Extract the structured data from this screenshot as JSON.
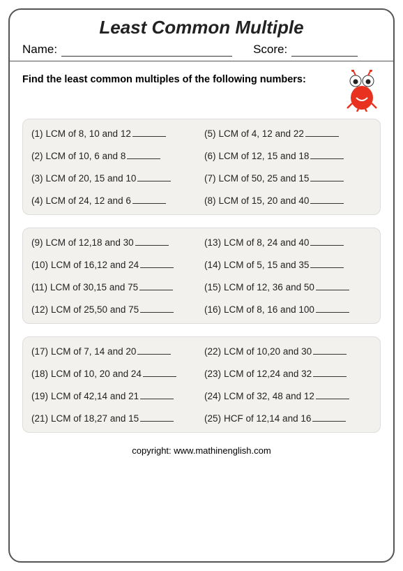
{
  "title": "Least Common Multiple",
  "name_label": "Name:",
  "score_label": "Score:",
  "instruction": "Find the least common multiples of the following numbers:",
  "copyright": "copyright:   www.mathinenglish.com",
  "colors": {
    "border": "#555555",
    "text": "#222222",
    "group_bg": "#f3f1ee",
    "group_border": "#dddddd",
    "mascot_body": "#e8321f",
    "mascot_eye": "#ffffff"
  },
  "typography": {
    "title_fontsize": 26,
    "meta_fontsize": 17,
    "instruction_fontsize": 14.5,
    "problem_fontsize": 13.5,
    "copyright_fontsize": 13
  },
  "groups": [
    {
      "left": [
        {
          "n": "(1)",
          "t": "LCM of 8, 10 and 12"
        },
        {
          "n": "(2)",
          "t": "LCM of 10, 6 and 8 "
        },
        {
          "n": "(3)",
          "t": "LCM of 20, 15 and 10"
        },
        {
          "n": "(4)",
          "t": "LCM of 24, 12 and 6"
        }
      ],
      "right": [
        {
          "n": "(5)",
          "t": "LCM of 4, 12 and 22"
        },
        {
          "n": "(6)",
          "t": "LCM of 12, 15 and 18"
        },
        {
          "n": "(7)",
          "t": "LCM of 50, 25 and 15"
        },
        {
          "n": "(8)",
          "t": "LCM of 15, 20 and 40"
        }
      ]
    },
    {
      "left": [
        {
          "n": "(9)",
          "t": "  LCM of 12,18 and 30"
        },
        {
          "n": "(10)",
          "t": "LCM of 16,12 and 24"
        },
        {
          "n": "(11)",
          "t": "LCM of 30,15 and 75"
        },
        {
          "n": "(12)",
          "t": "LCM of 25,50 and 75"
        }
      ],
      "right": [
        {
          "n": "(13)",
          "t": "LCM of  8, 24 and 40"
        },
        {
          "n": "(14)",
          "t": "LCM of  5, 15 and 35"
        },
        {
          "n": "(15)",
          "t": "LCM of 12, 36 and 50"
        },
        {
          "n": "(16)",
          "t": "LCM of 8, 16 and 100"
        }
      ]
    },
    {
      "left": [
        {
          "n": "(17)",
          "t": "LCM of 7, 14 and 20"
        },
        {
          "n": "(18)",
          "t": "LCM of 10, 20 and 24"
        },
        {
          "n": "(19)",
          "t": "LCM of 42,14 and 21"
        },
        {
          "n": "(21)",
          "t": "LCM of 18,27 and 15"
        }
      ],
      "right": [
        {
          "n": "(22)",
          "t": "LCM of 10,20 and 30"
        },
        {
          "n": "(23)",
          "t": "LCM of 12,24 and 32"
        },
        {
          "n": "(24)",
          "t": "LCM of 32, 48 and 12"
        },
        {
          "n": "(25)",
          "t": "HCF of 12,14 and 16"
        }
      ]
    }
  ]
}
